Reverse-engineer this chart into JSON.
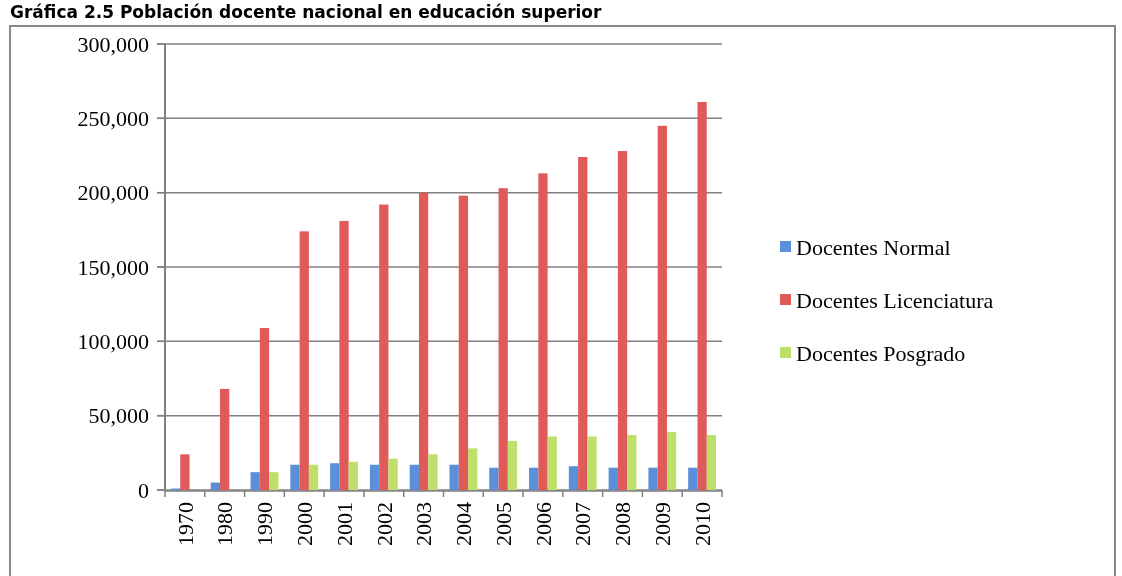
{
  "chart_data": {
    "type": "bar",
    "title": "Gráfica 2.5 Población docente nacional en educación superior",
    "categories": [
      "1970",
      "1980",
      "1990",
      "2000",
      "2001",
      "2002",
      "2003",
      "2004",
      "2005",
      "2006",
      "2007",
      "2008",
      "2009",
      "2010"
    ],
    "series": [
      {
        "name": "Docentes Normal",
        "color": "#5b8fd9",
        "values": [
          1000,
          5000,
          12000,
          17000,
          18000,
          17000,
          17000,
          17000,
          15000,
          15000,
          16000,
          15000,
          15000,
          15000
        ]
      },
      {
        "name": "Docentes Licenciatura",
        "color": "#e05a5a",
        "values": [
          24000,
          68000,
          109000,
          174000,
          181000,
          192000,
          200000,
          198000,
          203000,
          213000,
          224000,
          228000,
          245000,
          261000
        ]
      },
      {
        "name": "Docentes Posgrado",
        "color": "#bde06a",
        "values": [
          null,
          null,
          12000,
          17000,
          19000,
          21000,
          24000,
          28000,
          33000,
          36000,
          36000,
          37000,
          39000,
          37000
        ]
      }
    ],
    "ylim": [
      0,
      300000
    ],
    "yticks": [
      {
        "value": 0,
        "label": "0"
      },
      {
        "value": 50000,
        "label": "50,000"
      },
      {
        "value": 100000,
        "label": "100,000"
      },
      {
        "value": 150000,
        "label": "150,000"
      },
      {
        "value": 200000,
        "label": "200,000"
      },
      {
        "value": 250000,
        "label": "250,000"
      },
      {
        "value": 300000,
        "label": "300,000"
      }
    ],
    "grid": "y",
    "legend": "right"
  }
}
